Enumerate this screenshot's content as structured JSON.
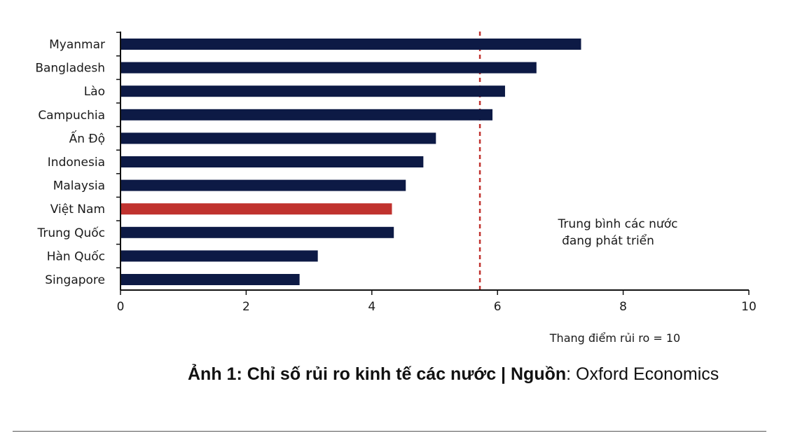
{
  "chart_data": {
    "type": "bar",
    "orientation": "horizontal",
    "categories": [
      "Myanmar",
      "Bangladesh",
      "Lào",
      "Campuchia",
      "Ấn Độ",
      "Indonesia",
      "Malaysia",
      "Việt Nam",
      "Trung Quốc",
      "Hàn Quốc",
      "Singapore"
    ],
    "values": [
      7.33,
      6.62,
      6.12,
      5.92,
      5.02,
      4.82,
      4.54,
      4.32,
      4.35,
      3.14,
      2.85
    ],
    "highlight_category": "Việt Nam",
    "xlim": [
      0,
      10
    ],
    "xticks": [
      0,
      2,
      4,
      6,
      8,
      10
    ],
    "xtick_labels": [
      "0",
      "2",
      "4",
      "6",
      "8",
      "10"
    ],
    "grid": false,
    "reference_line": {
      "value": 5.72,
      "label_lines": [
        "Trung bình các nước",
        "đang phát triển"
      ]
    },
    "note": "Thang điểm rủi ro = 10",
    "colors": {
      "bar": "#0d1a45",
      "highlight": "#c0322e",
      "reference_line": "#c0322e",
      "axis": "#111111"
    }
  },
  "caption": {
    "prefix": "Ảnh 1: Chỉ số rủi ro kinh tế các nước | Nguồn",
    "separator": ":",
    "source": " Oxford Economics"
  }
}
